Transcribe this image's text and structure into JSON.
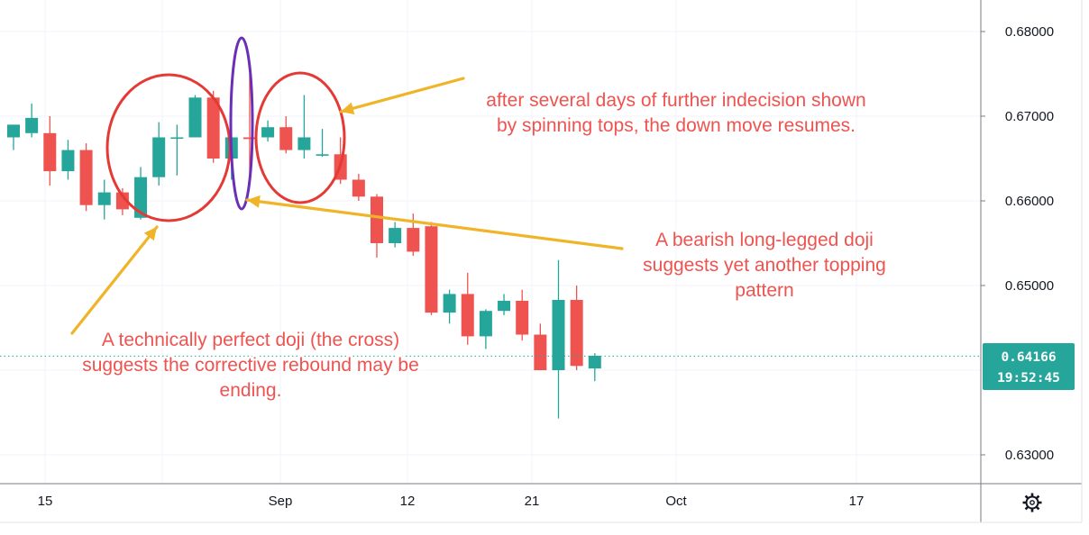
{
  "chart_data": {
    "type": "candlestick",
    "x_ticks": [
      "15",
      "Sep",
      "12",
      "21",
      "Oct",
      "17"
    ],
    "y_ticks": [
      "0.68000",
      "0.67000",
      "0.66000",
      "0.65000",
      "0.63000"
    ],
    "y_range": [
      0.6285,
      0.6822
    ],
    "current_price": {
      "value": "0.64166",
      "countdown": "19:52:45",
      "raw": 0.64166
    },
    "candles": [
      {
        "o": 0.6675,
        "h": 0.669,
        "l": 0.666,
        "c": 0.669
      },
      {
        "o": 0.668,
        "h": 0.6715,
        "l": 0.6675,
        "c": 0.6698
      },
      {
        "o": 0.668,
        "h": 0.67,
        "l": 0.6618,
        "c": 0.6635
      },
      {
        "o": 0.6635,
        "h": 0.6672,
        "l": 0.6625,
        "c": 0.666
      },
      {
        "o": 0.666,
        "h": 0.6668,
        "l": 0.6588,
        "c": 0.6595
      },
      {
        "o": 0.6595,
        "h": 0.6625,
        "l": 0.6578,
        "c": 0.661
      },
      {
        "o": 0.661,
        "h": 0.6615,
        "l": 0.6583,
        "c": 0.659
      },
      {
        "o": 0.658,
        "h": 0.664,
        "l": 0.6578,
        "c": 0.6628
      },
      {
        "o": 0.6628,
        "h": 0.6693,
        "l": 0.6618,
        "c": 0.6675
      },
      {
        "o": 0.6675,
        "h": 0.669,
        "l": 0.663,
        "c": 0.6675
      },
      {
        "o": 0.6675,
        "h": 0.6725,
        "l": 0.6675,
        "c": 0.6722
      },
      {
        "o": 0.6722,
        "h": 0.673,
        "l": 0.6645,
        "c": 0.665
      },
      {
        "o": 0.665,
        "h": 0.6695,
        "l": 0.6625,
        "c": 0.6675
      },
      {
        "o": 0.6675,
        "h": 0.675,
        "l": 0.6632,
        "c": 0.6673
      },
      {
        "o": 0.6675,
        "h": 0.6695,
        "l": 0.667,
        "c": 0.6687
      },
      {
        "o": 0.6687,
        "h": 0.67,
        "l": 0.6656,
        "c": 0.666
      },
      {
        "o": 0.666,
        "h": 0.6725,
        "l": 0.665,
        "c": 0.6675
      },
      {
        "o": 0.6655,
        "h": 0.6685,
        "l": 0.6652,
        "c": 0.6655
      },
      {
        "o": 0.6655,
        "h": 0.6675,
        "l": 0.662,
        "c": 0.6625
      },
      {
        "o": 0.6625,
        "h": 0.6632,
        "l": 0.66,
        "c": 0.6605
      },
      {
        "o": 0.6605,
        "h": 0.6608,
        "l": 0.6533,
        "c": 0.655
      },
      {
        "o": 0.655,
        "h": 0.6575,
        "l": 0.6545,
        "c": 0.6568
      },
      {
        "o": 0.6568,
        "h": 0.6585,
        "l": 0.6535,
        "c": 0.654
      },
      {
        "o": 0.657,
        "h": 0.6575,
        "l": 0.6465,
        "c": 0.6468
      },
      {
        "o": 0.6468,
        "h": 0.6495,
        "l": 0.6455,
        "c": 0.649
      },
      {
        "o": 0.649,
        "h": 0.6515,
        "l": 0.643,
        "c": 0.644
      },
      {
        "o": 0.644,
        "h": 0.6472,
        "l": 0.6425,
        "c": 0.647
      },
      {
        "o": 0.647,
        "h": 0.649,
        "l": 0.6465,
        "c": 0.6482
      },
      {
        "o": 0.6482,
        "h": 0.6495,
        "l": 0.6435,
        "c": 0.6442
      },
      {
        "o": 0.6442,
        "h": 0.6455,
        "l": 0.64,
        "c": 0.64
      },
      {
        "o": 0.64,
        "h": 0.653,
        "l": 0.6343,
        "c": 0.6483
      },
      {
        "o": 0.6483,
        "h": 0.65,
        "l": 0.64,
        "c": 0.6405
      },
      {
        "o": 0.6402,
        "h": 0.642,
        "l": 0.6387,
        "c": 0.6417
      }
    ],
    "annotations": [
      {
        "lines": [
          "after several days of further indecision shown",
          "by spinning tops, the down move resumes."
        ]
      },
      {
        "lines": [
          "A bearish long-legged doji",
          "suggests yet another topping",
          "pattern"
        ]
      },
      {
        "lines": [
          "A technically perfect doji (the cross)",
          "suggests the corrective rebound may be",
          "ending."
        ]
      }
    ],
    "colors": {
      "up": "#26a69a",
      "down": "#ef5350",
      "circle": "#e53935",
      "ellipse": "#6a2fb5",
      "arrow": "#f0b429",
      "annotation_text": "#ef5350",
      "price_tag": "#26a69a",
      "grid": "#f0f3fa",
      "axis_line": "#787b86"
    },
    "grid": true,
    "settings_icon": "gear-icon"
  }
}
